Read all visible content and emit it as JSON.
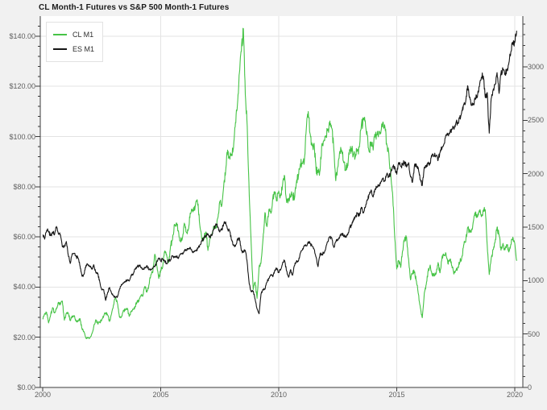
{
  "title": "CL Month-1 Futures vs S&P 500 Month-1 Futures",
  "colors": {
    "page_bg": "#f1f1f1",
    "plot_bg": "#ffffff",
    "grid": "#e3e3e3",
    "spine": "#3c3c3c",
    "tick_label": "#606060",
    "cl_line": "#46c346",
    "es_line": "#161616"
  },
  "legend": {
    "position": "top-left",
    "items": [
      {
        "label": "CL M1",
        "color": "#46c346"
      },
      {
        "label": "ES M1",
        "color": "#161616"
      }
    ]
  },
  "chart_data": {
    "type": "line",
    "title": "CL Month-1 Futures vs S&P 500 Month-1 Futures",
    "x_start": "2000-01",
    "x_step": "1 month",
    "x_end": "2020-02",
    "x_ticks": {
      "positions": [
        2000,
        2005,
        2010,
        2015,
        2020
      ],
      "labels": [
        "2000",
        "2005",
        "2010",
        "2015",
        "2020"
      ]
    },
    "left_axis": {
      "range": [
        0,
        148
      ],
      "major_ticks": [
        0,
        20,
        40,
        60,
        80,
        100,
        120,
        140
      ],
      "labels": [
        "$0.00",
        "$20.00",
        "$40.00",
        "$60.00",
        "$80.00",
        "$100.00",
        "$120.00",
        "$140.00"
      ],
      "minor_step": 4
    },
    "right_axis": {
      "range": [
        0,
        3475
      ],
      "major_ticks": [
        0,
        500,
        1000,
        1500,
        2000,
        2500,
        3000
      ],
      "labels": [
        "0",
        "500",
        "1000",
        "1500",
        "2000",
        "2500",
        "3000"
      ],
      "minor_step": 100
    },
    "grid": {
      "horizontal_step": 20,
      "vertical_years": [
        2005,
        2010,
        2015,
        2020
      ]
    },
    "legend_position": "top-left",
    "series": [
      {
        "name": "CL M1",
        "axis": "left",
        "color": "#46c346",
        "values": [
          27.2,
          29.4,
          29.9,
          25.7,
          28.8,
          31.8,
          29.7,
          31.3,
          33.9,
          33.1,
          34.4,
          26.8,
          29.6,
          29.6,
          26.6,
          28.5,
          28.6,
          26.3,
          26.4,
          27.4,
          23.4,
          22.2,
          19.6,
          19.8,
          19.7,
          21.3,
          24.5,
          27.0,
          25.3,
          25.9,
          26.9,
          28.4,
          29.7,
          28.9,
          26.3,
          29.4,
          32.9,
          35.9,
          33.5,
          28.2,
          28.1,
          30.7,
          30.8,
          31.6,
          28.3,
          30.3,
          31.1,
          32.1,
          34.3,
          34.7,
          36.8,
          36.7,
          40.3,
          38.0,
          40.8,
          44.9,
          45.9,
          53.1,
          48.5,
          43.4,
          46.8,
          48.0,
          54.3,
          53.0,
          49.8,
          56.4,
          59.0,
          65.0,
          65.6,
          62.4,
          58.3,
          59.4,
          65.5,
          61.9,
          62.9,
          69.5,
          70.9,
          70.9,
          74.4,
          73.1,
          63.9,
          59.0,
          59.4,
          62.0,
          54.6,
          59.3,
          60.6,
          64.0,
          63.5,
          67.5,
          74.1,
          72.4,
          79.9,
          86.2,
          94.6,
          91.7,
          93.0,
          95.4,
          105.6,
          112.6,
          125.4,
          133.9,
          143.0,
          116.7,
          104.1,
          76.7,
          57.3,
          39.0,
          42.0,
          35.5,
          48.0,
          49.8,
          59.2,
          69.7,
          64.1,
          71.0,
          69.4,
          75.8,
          78.0,
          74.5,
          78.3,
          76.4,
          81.2,
          84.3,
          73.7,
          75.3,
          76.3,
          76.6,
          75.2,
          81.9,
          84.2,
          89.2,
          89.2,
          89.6,
          103.0,
          110.0,
          101.0,
          96.3,
          97.3,
          86.3,
          85.6,
          86.4,
          97.2,
          98.6,
          100.3,
          102.3,
          106.2,
          103.3,
          94.7,
          82.4,
          87.9,
          94.1,
          94.6,
          89.6,
          86.7,
          88.2,
          94.8,
          95.3,
          93.0,
          92.0,
          94.8,
          95.8,
          104.7,
          106.6,
          106.3,
          100.5,
          93.9,
          97.6,
          94.6,
          100.8,
          100.8,
          102.0,
          102.2,
          105.8,
          103.6,
          96.5,
          93.2,
          84.4,
          75.8,
          59.3,
          47.2,
          50.6,
          47.8,
          54.5,
          59.3,
          59.8,
          51.2,
          42.9,
          45.5,
          46.2,
          42.4,
          37.2,
          31.7,
          27.8,
          37.6,
          41.0,
          46.7,
          48.8,
          44.7,
          44.7,
          45.2,
          49.8,
          45.7,
          52.0,
          52.5,
          53.5,
          49.3,
          51.1,
          48.5,
          45.2,
          46.6,
          48.0,
          49.8,
          51.6,
          56.6,
          57.9,
          63.7,
          62.2,
          62.7,
          66.3,
          70.0,
          67.9,
          70.6,
          68.1,
          70.2,
          70.8,
          56.7,
          45.0,
          51.4,
          55.0,
          58.2,
          63.9,
          60.8,
          54.7,
          57.4,
          54.8,
          56.9,
          54.0,
          57.0,
          59.9,
          57.5,
          50.5
        ]
      },
      {
        "name": "ES M1",
        "axis": "right",
        "color": "#161616",
        "values": [
          1425,
          1388,
          1470,
          1461,
          1421,
          1455,
          1431,
          1507,
          1436,
          1429,
          1315,
          1320,
          1366,
          1240,
          1160,
          1249,
          1256,
          1224,
          1211,
          1134,
          1041,
          1060,
          1139,
          1148,
          1130,
          1107,
          1147,
          1077,
          1067,
          990,
          912,
          916,
          815,
          886,
          936,
          880,
          856,
          841,
          848,
          917,
          964,
          975,
          990,
          1008,
          996,
          1051,
          1058,
          1112,
          1131,
          1145,
          1126,
          1107,
          1121,
          1141,
          1102,
          1104,
          1115,
          1130,
          1174,
          1212,
          1181,
          1204,
          1181,
          1157,
          1192,
          1191,
          1234,
          1220,
          1229,
          1207,
          1249,
          1248,
          1280,
          1281,
          1295,
          1311,
          1270,
          1270,
          1277,
          1304,
          1336,
          1378,
          1401,
          1418,
          1438,
          1407,
          1421,
          1482,
          1531,
          1503,
          1455,
          1474,
          1527,
          1549,
          1481,
          1468,
          1379,
          1331,
          1323,
          1386,
          1400,
          1280,
          1267,
          1283,
          1166,
          969,
          896,
          903,
          826,
          735,
          690,
          873,
          919,
          919,
          987,
          1021,
          1057,
          1036,
          1096,
          1115,
          1074,
          1104,
          1169,
          1187,
          1089,
          1031,
          1102,
          1049,
          1141,
          1183,
          1181,
          1258,
          1286,
          1327,
          1326,
          1364,
          1345,
          1321,
          1292,
          1219,
          1131,
          1253,
          1247,
          1258,
          1312,
          1366,
          1408,
          1398,
          1310,
          1362,
          1379,
          1407,
          1441,
          1412,
          1416,
          1426,
          1498,
          1515,
          1569,
          1598,
          1631,
          1606,
          1686,
          1633,
          1682,
          1757,
          1806,
          1848,
          1783,
          1859,
          1872,
          1884,
          1924,
          1960,
          1931,
          2003,
          1972,
          2018,
          2068,
          2059,
          1995,
          2105,
          2068,
          2086,
          2107,
          2063,
          2104,
          1972,
          1920,
          2079,
          2080,
          2044,
          1940,
          1890,
          2060,
          2065,
          2097,
          2099,
          2174,
          2171,
          2168,
          2126,
          2199,
          2239,
          2279,
          2364,
          2363,
          2384,
          2412,
          2423,
          2470,
          2472,
          2519,
          2575,
          2648,
          2674,
          2824,
          2714,
          2641,
          2648,
          2705,
          2718,
          2816,
          2902,
          2914,
          2712,
          2760,
          2380,
          2704,
          2784,
          2834,
          2946,
          2752,
          2942,
          2980,
          2926,
          2977,
          3038,
          3141,
          3231,
          3226,
          3338
        ]
      }
    ]
  }
}
